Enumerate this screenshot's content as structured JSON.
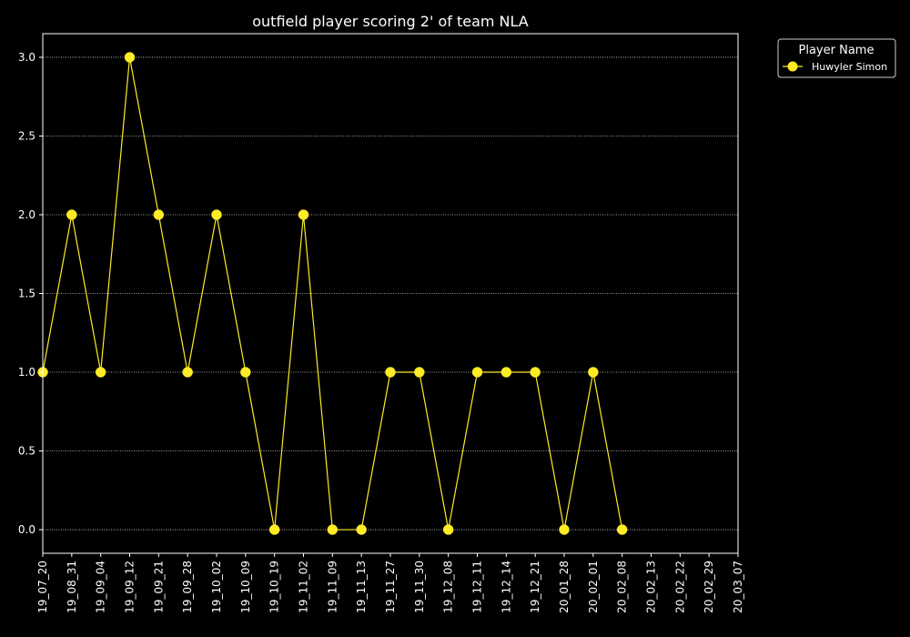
{
  "chart_data": {
    "type": "line",
    "title": "outfield player scoring 2' of team NLA",
    "xlabel": "",
    "ylabel": "",
    "categories": [
      "19_07_20",
      "19_08_31",
      "19_09_04",
      "19_09_12",
      "19_09_21",
      "19_09_28",
      "19_10_02",
      "19_10_09",
      "19_10_19",
      "19_11_02",
      "19_11_09",
      "19_11_13",
      "19_11_27",
      "19_11_30",
      "19_12_08",
      "19_12_11",
      "19_12_14",
      "19_12_21",
      "20_01_28",
      "20_02_01",
      "20_02_08",
      "20_02_13",
      "20_02_22",
      "20_02_29",
      "20_03_07"
    ],
    "yticks": [
      "0.0",
      "0.5",
      "1.0",
      "1.5",
      "2.0",
      "2.5",
      "3.0"
    ],
    "ylim": [
      -0.15,
      3.15
    ],
    "grid": true,
    "legend": {
      "title": "Player Name",
      "placement": "upper-right-outside"
    },
    "series": [
      {
        "name": "Huwyler Simon",
        "color": "#ffeb26",
        "values": [
          1,
          2,
          1,
          3,
          2,
          1,
          2,
          1,
          0,
          2,
          0,
          0,
          1,
          1,
          0,
          1,
          1,
          1,
          0,
          1,
          0,
          null,
          null,
          null,
          null
        ]
      }
    ]
  }
}
